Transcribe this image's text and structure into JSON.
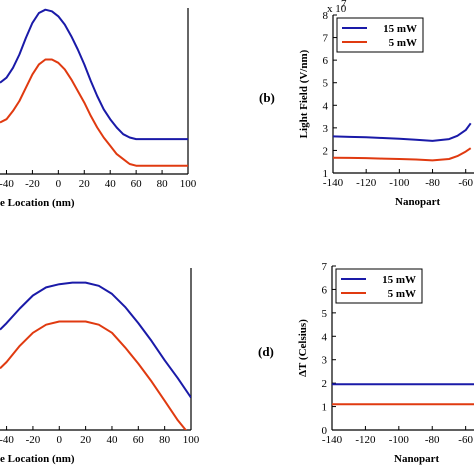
{
  "colors": {
    "blue": "#1a1aa8",
    "red": "#e03a10"
  },
  "chart_data": [
    {
      "id": "a",
      "type": "line",
      "panel_label": "",
      "xlabel": "e Location (nm)",
      "ylabel": "",
      "xlim": [
        -45,
        100
      ],
      "xticks": [
        "-40",
        "-20",
        "0",
        "20",
        "40",
        "60",
        "80",
        "100"
      ],
      "series": [
        {
          "color": "blue",
          "x": [
            -45,
            -40,
            -35,
            -30,
            -25,
            -20,
            -15,
            -10,
            -5,
            0,
            5,
            10,
            15,
            20,
            25,
            30,
            35,
            40,
            45,
            50,
            55,
            60,
            65,
            70,
            80,
            90,
            100
          ],
          "y": [
            0.55,
            0.58,
            0.64,
            0.72,
            0.82,
            0.91,
            0.97,
            0.99,
            0.98,
            0.95,
            0.9,
            0.83,
            0.75,
            0.66,
            0.56,
            0.47,
            0.39,
            0.33,
            0.28,
            0.24,
            0.22,
            0.21,
            0.21,
            0.21,
            0.21,
            0.21,
            0.21
          ]
        },
        {
          "color": "red",
          "x": [
            -45,
            -40,
            -35,
            -30,
            -25,
            -20,
            -15,
            -10,
            -5,
            0,
            5,
            10,
            15,
            20,
            25,
            30,
            35,
            40,
            45,
            50,
            55,
            60,
            65,
            70,
            80,
            90,
            100
          ],
          "y": [
            0.31,
            0.33,
            0.38,
            0.44,
            0.52,
            0.6,
            0.66,
            0.69,
            0.69,
            0.67,
            0.63,
            0.57,
            0.5,
            0.43,
            0.35,
            0.28,
            0.22,
            0.17,
            0.12,
            0.09,
            0.06,
            0.05,
            0.05,
            0.05,
            0.05,
            0.05,
            0.05
          ]
        }
      ]
    },
    {
      "id": "b",
      "type": "line",
      "panel_label": "(b)",
      "ylabel": "Light Field (V/nm)",
      "xlabel": "Nanopart",
      "y_exponent": "x 10",
      "y_exponent_power": "7",
      "xlim": [
        -140,
        -55
      ],
      "ylim": [
        1,
        8
      ],
      "xticks": [
        "-140",
        "-120",
        "-100",
        "-80",
        "-60"
      ],
      "yticks": [
        "1",
        "2",
        "3",
        "4",
        "5",
        "6",
        "7",
        "8"
      ],
      "legend": [
        "15 mW",
        "5 mW"
      ],
      "legend_position": "top-left",
      "series": [
        {
          "name": "15 mW",
          "color": "blue",
          "x": [
            -140,
            -130,
            -120,
            -110,
            -100,
            -90,
            -80,
            -70,
            -65,
            -60,
            -57
          ],
          "y": [
            2.62,
            2.6,
            2.58,
            2.55,
            2.52,
            2.47,
            2.42,
            2.5,
            2.65,
            2.9,
            3.2
          ]
        },
        {
          "name": "5 mW",
          "color": "red",
          "x": [
            -140,
            -130,
            -120,
            -110,
            -100,
            -90,
            -80,
            -70,
            -65,
            -60,
            -57
          ],
          "y": [
            1.68,
            1.67,
            1.66,
            1.64,
            1.62,
            1.6,
            1.56,
            1.62,
            1.75,
            1.95,
            2.1
          ]
        }
      ]
    },
    {
      "id": "c",
      "type": "line",
      "panel_label": "",
      "xlabel": "e Location (nm)",
      "ylabel": "",
      "xlim": [
        -45,
        100
      ],
      "xticks": [
        "-40",
        "-20",
        "0",
        "20",
        "40",
        "60",
        "80",
        "100"
      ],
      "series": [
        {
          "color": "blue",
          "x": [
            -45,
            -40,
            -30,
            -20,
            -10,
            0,
            10,
            20,
            30,
            40,
            50,
            60,
            70,
            80,
            90,
            100
          ],
          "y": [
            0.62,
            0.66,
            0.75,
            0.83,
            0.88,
            0.9,
            0.91,
            0.91,
            0.89,
            0.84,
            0.76,
            0.66,
            0.55,
            0.43,
            0.32,
            0.2
          ]
        },
        {
          "color": "red",
          "x": [
            -45,
            -40,
            -30,
            -20,
            -10,
            0,
            10,
            20,
            30,
            40,
            50,
            60,
            70,
            80,
            90,
            100
          ],
          "y": [
            0.38,
            0.42,
            0.52,
            0.6,
            0.65,
            0.67,
            0.67,
            0.67,
            0.65,
            0.6,
            0.51,
            0.41,
            0.3,
            0.18,
            0.06,
            -0.04
          ]
        }
      ]
    },
    {
      "id": "d",
      "type": "line",
      "panel_label": "(d)",
      "ylabel": "ΔT (Celsius)",
      "xlabel": "Nanopart",
      "xlim": [
        -140,
        -55
      ],
      "ylim": [
        0,
        7
      ],
      "xticks": [
        "-140",
        "-120",
        "-100",
        "-80",
        "-60"
      ],
      "yticks": [
        "0",
        "1",
        "2",
        "3",
        "4",
        "5",
        "6",
        "7"
      ],
      "legend": [
        "15 mW",
        "5 mW"
      ],
      "legend_position": "top-left",
      "series": [
        {
          "name": "15 mW",
          "color": "blue",
          "x": [
            -140,
            -55
          ],
          "y": [
            1.95,
            1.95
          ]
        },
        {
          "name": "5 mW",
          "color": "red",
          "x": [
            -140,
            -55
          ],
          "y": [
            1.1,
            1.1
          ]
        }
      ]
    }
  ]
}
